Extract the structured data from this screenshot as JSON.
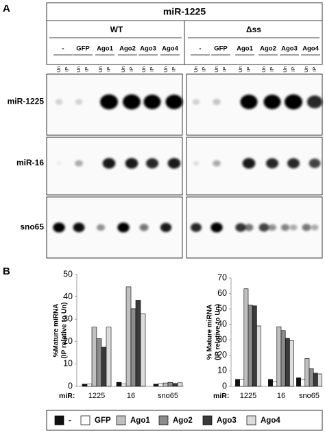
{
  "panel_a": {
    "letter": "A",
    "title": "miR-1225",
    "groups": [
      "WT",
      "Δss"
    ],
    "conditions": [
      "-",
      "GFP",
      "Ago1",
      "Ago2",
      "Ago3",
      "Ago4"
    ],
    "lane_labels": [
      "Un",
      "IP"
    ],
    "rows": [
      "miR-1225",
      "miR-16",
      "sno65"
    ]
  },
  "panel_b": {
    "letter": "B"
  },
  "chart_data": [
    {
      "type": "bar",
      "ylabel": [
        "%Mature miRNA",
        "(IP relative to Un)"
      ],
      "xlabel": "miR:",
      "categories": [
        "1225",
        "16",
        "sno65"
      ],
      "ylim": [
        0,
        50
      ],
      "yticks": [
        0,
        10,
        20,
        30,
        40,
        50
      ],
      "series": [
        {
          "name": "-",
          "color": "#111111",
          "values": [
            1,
            1.8,
            1
          ]
        },
        {
          "name": "GFP",
          "color": "#ffffff",
          "values": [
            1,
            1,
            1.2
          ]
        },
        {
          "name": "Ago1",
          "color": "#c0c0c0",
          "values": [
            26.5,
            44.5,
            1.5
          ]
        },
        {
          "name": "Ago2",
          "color": "#8c8c8c",
          "values": [
            21.3,
            34.7,
            1.8
          ]
        },
        {
          "name": "Ago3",
          "color": "#3a3a3a",
          "values": [
            17.5,
            38.5,
            1.3
          ]
        },
        {
          "name": "Ago4",
          "color": "#dcdcdc",
          "values": [
            26.5,
            32.5,
            1.6
          ]
        }
      ]
    },
    {
      "type": "bar",
      "ylabel": [
        "% Mature miRNA",
        "(IP relative to Un)"
      ],
      "xlabel": "miR:",
      "categories": [
        "1225",
        "16",
        "sno65"
      ],
      "ylim": [
        0,
        70
      ],
      "yticks": [
        0,
        10,
        20,
        30,
        40,
        50,
        60,
        70
      ],
      "series": [
        {
          "name": "-",
          "color": "#111111",
          "values": [
            4.5,
            4.5,
            5.5
          ]
        },
        {
          "name": "GFP",
          "color": "#ffffff",
          "values": [
            4.5,
            3,
            4.5
          ]
        },
        {
          "name": "Ago1",
          "color": "#c0c0c0",
          "values": [
            63,
            38.5,
            18
          ]
        },
        {
          "name": "Ago2",
          "color": "#8c8c8c",
          "values": [
            52.5,
            36,
            11.5
          ]
        },
        {
          "name": "Ago3",
          "color": "#3a3a3a",
          "values": [
            52,
            31,
            8.5
          ]
        },
        {
          "name": "Ago4",
          "color": "#dcdcdc",
          "values": [
            39,
            29.5,
            8
          ]
        }
      ]
    }
  ]
}
